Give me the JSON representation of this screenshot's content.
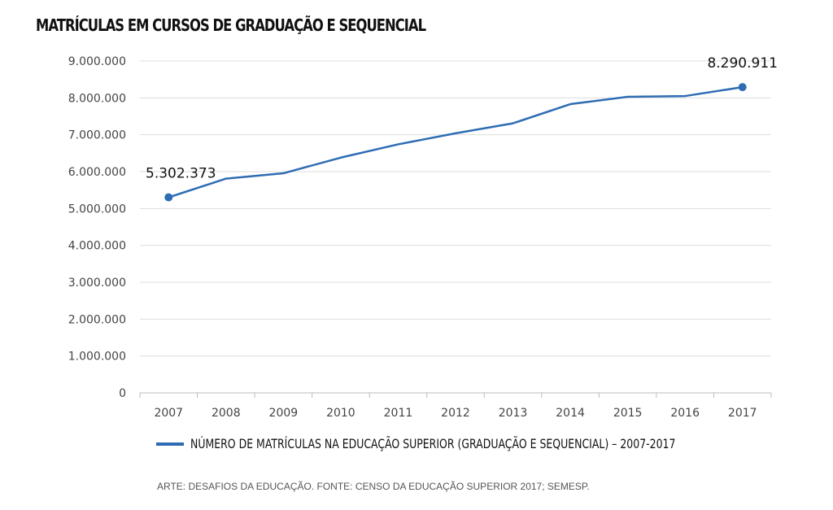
{
  "chart_data": {
    "type": "line",
    "title": "MATRÍCULAS EM CURSOS DE GRADUAÇÃO E SEQUENCIAL",
    "xlabel": "",
    "ylabel": "",
    "categories": [
      "2007",
      "2008",
      "2009",
      "2010",
      "2011",
      "2012",
      "2013",
      "2014",
      "2015",
      "2016",
      "2017"
    ],
    "series": [
      {
        "name": "NÚMERO DE MATRÍCULAS NA EDUCAÇÃO SUPERIOR (GRADUAÇÃO E SEQUENCIAL) – 2007-2017",
        "values": [
          5302373,
          5810000,
          5955000,
          6380000,
          6740000,
          7040000,
          7310000,
          7830000,
          8030000,
          8050000,
          8290911
        ],
        "color": "#2e6db4"
      }
    ],
    "ylim": [
      0,
      9000000
    ],
    "yticks": [
      0,
      1000000,
      2000000,
      3000000,
      4000000,
      5000000,
      6000000,
      7000000,
      8000000,
      9000000
    ],
    "ytick_labels": [
      "0",
      "1.000.000",
      "2.000.000",
      "3.000.000",
      "4.000.000",
      "5.000.000",
      "6.000.000",
      "7.000.000",
      "8.000.000",
      "9.000.000"
    ],
    "data_labels": [
      {
        "index": 0,
        "text": "5.302.373"
      },
      {
        "index": 10,
        "text": "8.290.911"
      }
    ],
    "grid": true,
    "legend": "bottom-center"
  },
  "footer": "ARTE: DESAFIOS DA EDUCAÇÃO. FONTE: CENSO DA EDUCAÇÃO SUPERIOR 2017; SEMESP."
}
